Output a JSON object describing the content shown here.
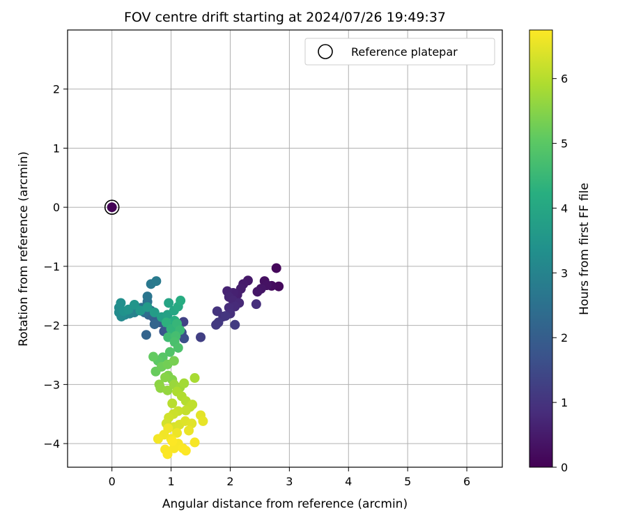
{
  "chart_data": {
    "type": "scatter",
    "title": "FOV centre drift starting at 2024/07/26 19:49:37",
    "xlabel": "Angular distance from reference (arcmin)",
    "ylabel": "Rotation from reference (arcmin)",
    "xlim": [
      -0.75,
      6.6
    ],
    "ylim": [
      -4.4,
      3.0
    ],
    "xticks": [
      0,
      1,
      2,
      3,
      4,
      5,
      6
    ],
    "yticks": [
      -4,
      -3,
      -2,
      -1,
      0,
      1,
      2
    ],
    "grid": true,
    "legend": {
      "position": "top-right",
      "entries": [
        {
          "label": "Reference platepar",
          "marker": "open-circle"
        }
      ]
    },
    "colorbar": {
      "label": "Hours from first FF file",
      "colormap": "viridis",
      "range": [
        0,
        6.75
      ],
      "ticks": [
        0,
        1,
        2,
        3,
        4,
        5,
        6
      ]
    },
    "reference_point": {
      "x": 0,
      "y": 0
    },
    "series": [
      {
        "points": [
          [
            0,
            0,
            0.05
          ],
          [
            2.78,
            -1.03,
            0.12
          ],
          [
            2.82,
            -1.34,
            0.18
          ],
          [
            2.7,
            -1.33,
            0.22
          ],
          [
            2.58,
            -1.25,
            0.28
          ],
          [
            2.62,
            -1.32,
            0.32
          ],
          [
            2.52,
            -1.38,
            0.38
          ],
          [
            2.46,
            -1.43,
            0.42
          ],
          [
            2.3,
            -1.24,
            0.46
          ],
          [
            2.22,
            -1.3,
            0.5
          ],
          [
            2.18,
            -1.38,
            0.55
          ],
          [
            2.12,
            -1.48,
            0.58
          ],
          [
            2.05,
            -1.45,
            0.62
          ],
          [
            1.95,
            -1.42,
            0.65
          ],
          [
            1.98,
            -1.52,
            0.7
          ],
          [
            2.05,
            -1.58,
            0.72
          ],
          [
            2.15,
            -1.62,
            0.76
          ],
          [
            2.08,
            -1.68,
            0.8
          ],
          [
            1.98,
            -1.7,
            0.85
          ],
          [
            2.44,
            -1.64,
            0.88
          ],
          [
            2.0,
            -1.8,
            0.92
          ],
          [
            1.88,
            -1.85,
            0.95
          ],
          [
            1.78,
            -1.76,
            1.0
          ],
          [
            1.92,
            -1.84,
            1.05
          ],
          [
            1.8,
            -1.95,
            1.1
          ],
          [
            1.76,
            -1.99,
            1.12
          ],
          [
            2.08,
            -1.99,
            1.18
          ],
          [
            1.5,
            -2.2,
            1.25
          ],
          [
            1.21,
            -1.94,
            1.32
          ],
          [
            1.12,
            -1.98,
            1.4
          ],
          [
            1.06,
            -2.04,
            1.48
          ],
          [
            1.18,
            -2.12,
            1.55
          ],
          [
            1.22,
            -2.22,
            1.62
          ],
          [
            0.96,
            -2.02,
            1.7
          ],
          [
            0.88,
            -2.1,
            1.78
          ],
          [
            0.82,
            -1.95,
            1.85
          ],
          [
            0.78,
            -1.9,
            1.92
          ],
          [
            0.7,
            -1.86,
            2.0
          ],
          [
            0.62,
            -1.82,
            2.1
          ],
          [
            0.58,
            -2.16,
            2.15
          ],
          [
            0.72,
            -1.98,
            2.2
          ],
          [
            0.66,
            -1.75,
            2.3
          ],
          [
            0.55,
            -1.78,
            2.4
          ],
          [
            0.5,
            -1.7,
            2.5
          ],
          [
            0.6,
            -1.6,
            2.55
          ],
          [
            0.6,
            -1.51,
            2.62
          ],
          [
            0.66,
            -1.3,
            2.7
          ],
          [
            0.75,
            -1.25,
            2.75
          ],
          [
            0.42,
            -1.72,
            2.85
          ],
          [
            0.38,
            -1.78,
            2.92
          ],
          [
            0.3,
            -1.8,
            3.0
          ],
          [
            0.22,
            -1.82,
            3.08
          ],
          [
            0.16,
            -1.85,
            3.15
          ],
          [
            0.12,
            -1.78,
            3.2
          ],
          [
            0.12,
            -1.7,
            3.25
          ],
          [
            0.15,
            -1.62,
            3.32
          ],
          [
            0.2,
            -1.76,
            3.4
          ],
          [
            0.28,
            -1.73,
            3.45
          ],
          [
            0.38,
            -1.65,
            3.5
          ],
          [
            0.48,
            -1.75,
            3.55
          ],
          [
            0.6,
            -1.69,
            3.62
          ],
          [
            0.72,
            -1.78,
            3.7
          ],
          [
            0.84,
            -1.86,
            3.78
          ],
          [
            0.94,
            -1.82,
            3.85
          ],
          [
            0.96,
            -1.62,
            3.92
          ],
          [
            1.05,
            -1.75,
            4.0
          ],
          [
            1.12,
            -1.68,
            4.08
          ],
          [
            1.16,
            -1.58,
            4.15
          ],
          [
            1.06,
            -1.92,
            4.22
          ],
          [
            0.92,
            -1.95,
            4.3
          ],
          [
            1.0,
            -2.06,
            4.38
          ],
          [
            1.1,
            -1.97,
            4.45
          ],
          [
            1.15,
            -2.08,
            4.52
          ],
          [
            0.95,
            -2.2,
            4.6
          ],
          [
            1.08,
            -2.18,
            4.68
          ],
          [
            1.06,
            -2.28,
            4.75
          ],
          [
            1.12,
            -2.38,
            4.82
          ],
          [
            0.98,
            -2.45,
            4.88
          ],
          [
            0.86,
            -2.54,
            4.95
          ],
          [
            0.78,
            -2.6,
            5.02
          ],
          [
            0.7,
            -2.53,
            5.1
          ],
          [
            0.74,
            -2.78,
            5.16
          ],
          [
            0.84,
            -2.7,
            5.22
          ],
          [
            0.94,
            -2.66,
            5.28
          ],
          [
            1.05,
            -2.6,
            5.34
          ],
          [
            0.95,
            -2.85,
            5.4
          ],
          [
            1.02,
            -2.92,
            5.45
          ],
          [
            0.9,
            -2.88,
            5.5
          ],
          [
            0.8,
            -3.0,
            5.55
          ],
          [
            0.82,
            -3.06,
            5.6
          ],
          [
            0.94,
            -3.1,
            5.65
          ],
          [
            1.05,
            -3.0,
            5.7
          ],
          [
            1.15,
            -3.05,
            5.75
          ],
          [
            1.22,
            -2.98,
            5.8
          ],
          [
            1.4,
            -2.89,
            5.85
          ],
          [
            1.1,
            -3.12,
            5.9
          ],
          [
            1.18,
            -3.2,
            5.94
          ],
          [
            1.25,
            -3.28,
            5.98
          ],
          [
            1.02,
            -3.32,
            6.02
          ],
          [
            1.32,
            -3.38,
            6.06
          ],
          [
            1.36,
            -3.34,
            6.1
          ],
          [
            1.25,
            -3.44,
            6.14
          ],
          [
            1.12,
            -3.45,
            6.18
          ],
          [
            1.04,
            -3.5,
            6.22
          ],
          [
            0.96,
            -3.56,
            6.26
          ],
          [
            0.92,
            -3.66,
            6.3
          ],
          [
            1.05,
            -3.72,
            6.34
          ],
          [
            1.14,
            -3.68,
            6.38
          ],
          [
            1.24,
            -3.62,
            6.42
          ],
          [
            1.35,
            -3.66,
            6.45
          ],
          [
            1.5,
            -3.52,
            6.48
          ],
          [
            1.54,
            -3.62,
            6.52
          ],
          [
            1.3,
            -3.78,
            6.55
          ],
          [
            1.1,
            -3.82,
            6.58
          ],
          [
            0.95,
            -3.74,
            6.6
          ],
          [
            0.88,
            -3.85,
            6.62
          ],
          [
            0.78,
            -3.92,
            6.64
          ],
          [
            1.0,
            -3.92,
            6.66
          ],
          [
            1.4,
            -3.98,
            6.68
          ],
          [
            1.12,
            -4.0,
            6.69
          ],
          [
            1.05,
            -4.08,
            6.7
          ],
          [
            0.9,
            -4.1,
            6.71
          ],
          [
            1.2,
            -4.08,
            6.72
          ],
          [
            0.94,
            -4.18,
            6.73
          ],
          [
            1.25,
            -4.12,
            6.74
          ],
          [
            1.02,
            -3.96,
            6.74
          ]
        ]
      }
    ]
  }
}
